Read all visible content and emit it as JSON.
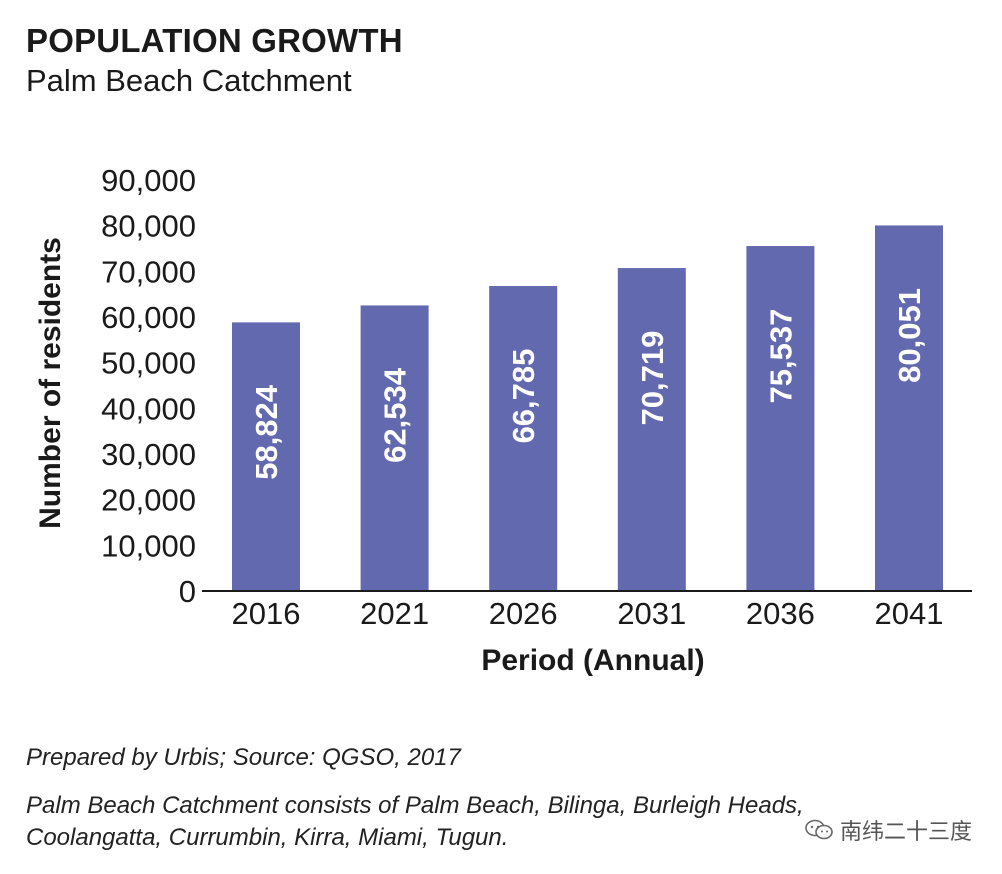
{
  "header": {
    "title": "POPULATION GROWTH",
    "subtitle": "Palm Beach Catchment"
  },
  "chart_data": {
    "type": "bar",
    "title": "POPULATION GROWTH",
    "subtitle": "Palm Beach Catchment",
    "categories": [
      "2016",
      "2021",
      "2026",
      "2031",
      "2036",
      "2041"
    ],
    "values": [
      58824,
      62534,
      66785,
      70719,
      75537,
      80051
    ],
    "data_labels": [
      "58,824",
      "62,534",
      "66,785",
      "70,719",
      "75,537",
      "80,051"
    ],
    "xlabel": "Period (Annual)",
    "ylabel": "Number of residents",
    "ylim": [
      0,
      90000
    ],
    "y_ticks": [
      "0",
      "10,000",
      "20,000",
      "30,000",
      "40,000",
      "50,000",
      "60,000",
      "70,000",
      "80,000",
      "90,000"
    ],
    "grid": false,
    "legend": "none",
    "bar_color": "#6369ae"
  },
  "footer": {
    "source": "Prepared by Urbis; Source: QGSO, 2017",
    "note_line1": "Palm Beach Catchment consists of Palm Beach, Bilinga, Burleigh Heads,",
    "note_line2": "Coolangatta, Currumbin, Kirra, Miami, Tugun."
  },
  "watermark": {
    "text": "南纬二十三度",
    "icon": "wechat-icon"
  }
}
